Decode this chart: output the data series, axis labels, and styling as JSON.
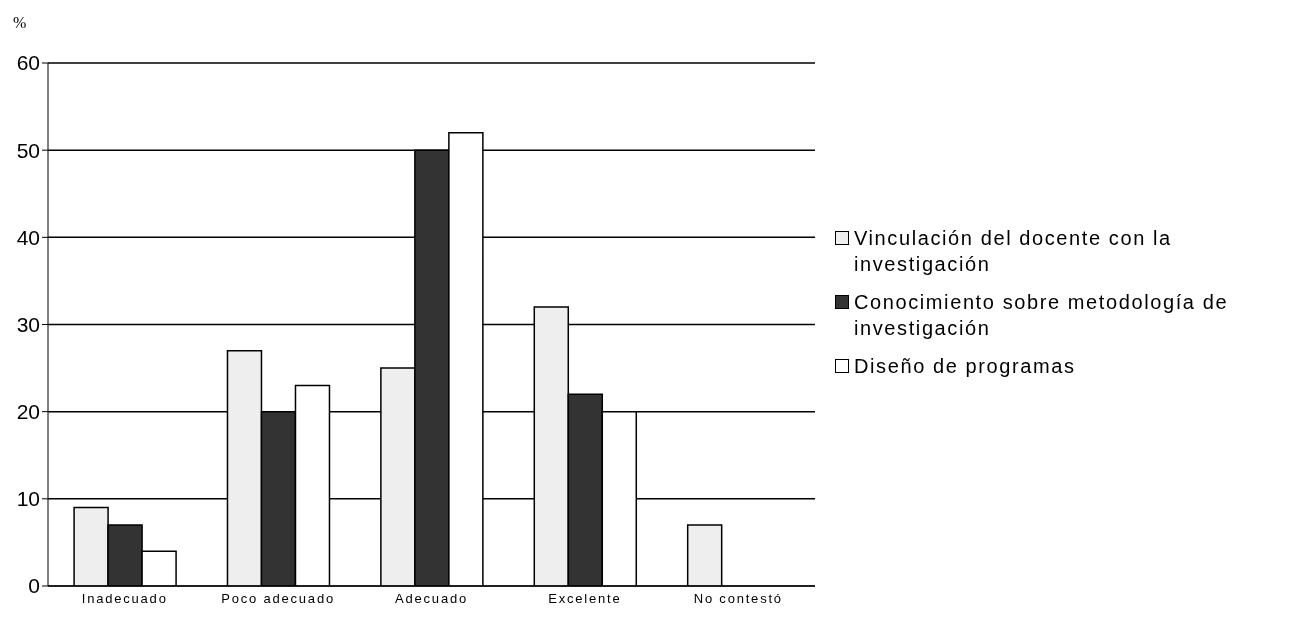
{
  "chart_data": {
    "type": "bar",
    "ylabel": "%",
    "categories": [
      "Inadecuado",
      "Poco adecuado",
      "Adecuado",
      "Excelente",
      "No contestó"
    ],
    "series": [
      {
        "name": "Vinculación del docente con la investigación",
        "color": "#eeeeee",
        "values": [
          9,
          27,
          25,
          32,
          7
        ]
      },
      {
        "name": "Conocimiento sobre metodología de investigación",
        "color": "#333333",
        "values": [
          7,
          20,
          50,
          22,
          0
        ]
      },
      {
        "name": "Diseño de programas",
        "color": "#ffffff",
        "values": [
          4,
          23,
          52,
          20,
          0
        ]
      }
    ],
    "ylim": [
      0,
      60
    ],
    "yticks": [
      0,
      10,
      20,
      30,
      40,
      50,
      60
    ],
    "grid": "y",
    "legend": "right"
  }
}
